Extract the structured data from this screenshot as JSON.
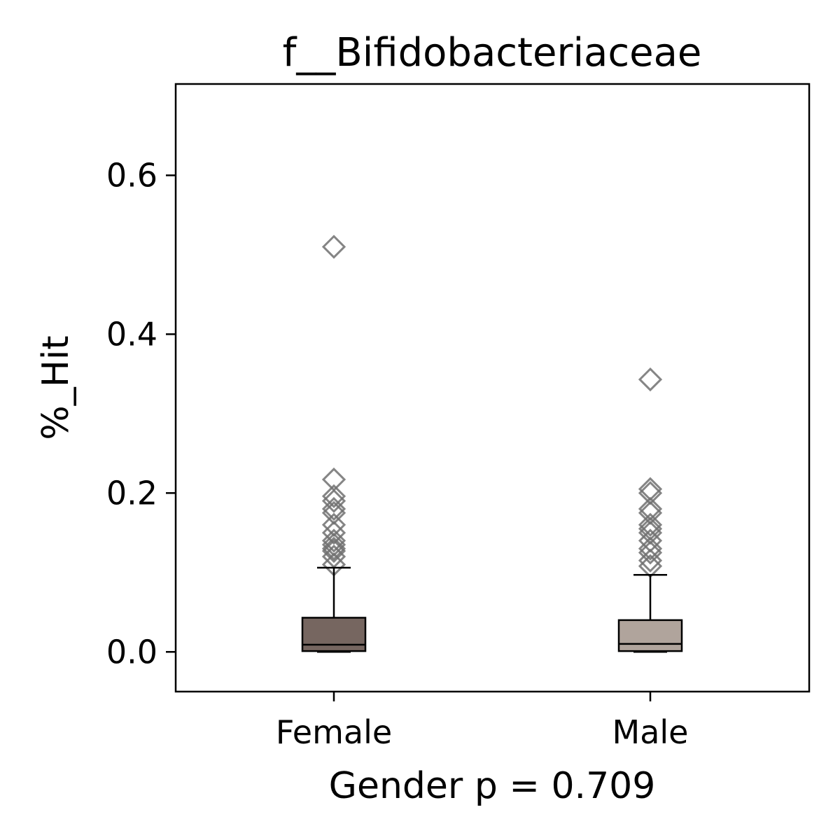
{
  "chart_data": {
    "type": "box",
    "title": "f__Bifidobacteriaceae",
    "xlabel": "Gender p = 0.709",
    "ylabel": "%_Hit",
    "ylim": [
      -0.05,
      0.715
    ],
    "yticks": [
      "0.0",
      "0.2",
      "0.4",
      "0.6"
    ],
    "categories": [
      "Female",
      "Male"
    ],
    "grid": false,
    "series": [
      {
        "category": "Female",
        "color": "#766660",
        "whisker_low": 0.0,
        "q1": 0.001,
        "median": 0.009,
        "q3": 0.043,
        "whisker_high": 0.106,
        "outliers": [
          0.51,
          0.217,
          0.196,
          0.19,
          0.18,
          0.175,
          0.16,
          0.15,
          0.14,
          0.135,
          0.13,
          0.127,
          0.12,
          0.11
        ]
      },
      {
        "category": "Male",
        "color": "#b0a49c",
        "whisker_low": 0.0,
        "q1": 0.001,
        "median": 0.01,
        "q3": 0.04,
        "whisker_high": 0.097,
        "outliers": [
          0.343,
          0.205,
          0.2,
          0.18,
          0.175,
          0.16,
          0.155,
          0.15,
          0.14,
          0.13,
          0.125,
          0.115,
          0.108
        ]
      }
    ],
    "outlier_marker": "hollow-diamond",
    "outlier_color": "#707070"
  }
}
